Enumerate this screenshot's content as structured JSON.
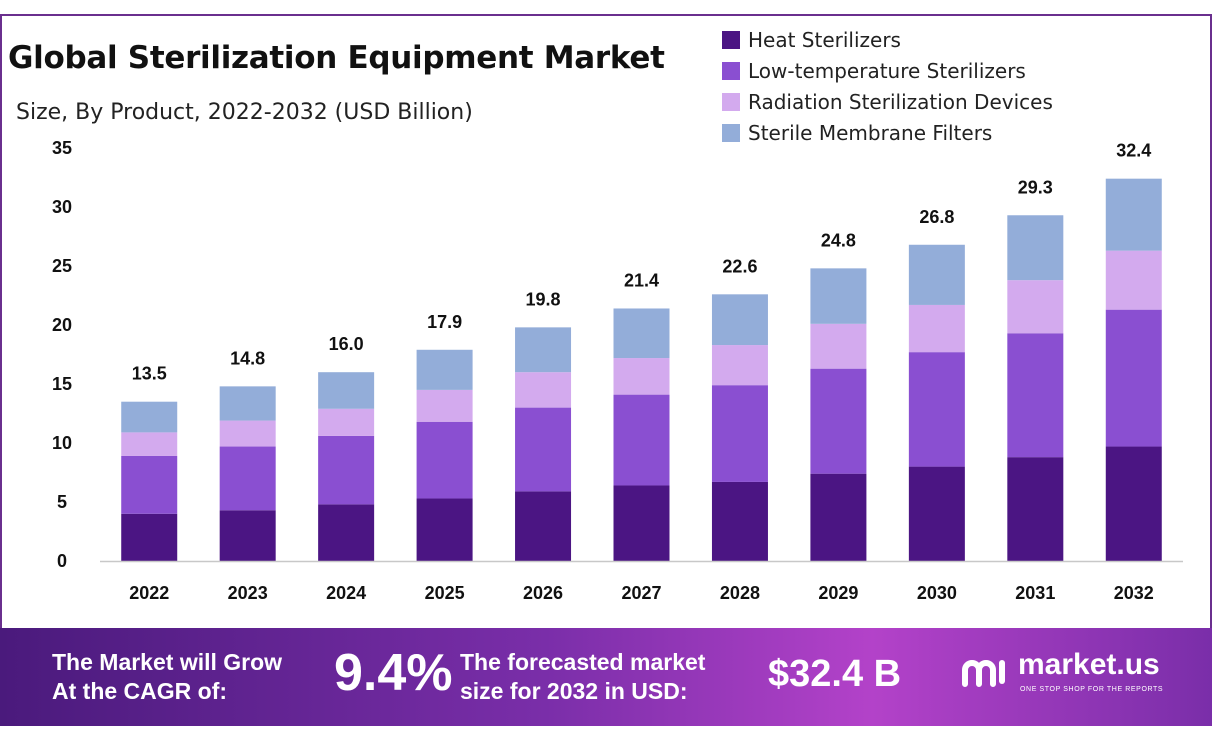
{
  "header": {
    "title": "Global Sterilization Equipment Market",
    "subtitle": "Size, By Product, 2022-2032 (USD Billion)"
  },
  "legend": [
    {
      "label": "Heat Sterilizers",
      "color": "#4b1583"
    },
    {
      "label": "Low-temperature Sterilizers",
      "color": "#8a4fd1"
    },
    {
      "label": "Radiation Sterilization Devices",
      "color": "#d3aaee"
    },
    {
      "label": "Sterile Membrane Filters",
      "color": "#93add9"
    }
  ],
  "banner": {
    "grow_line1": "The Market will Grow",
    "grow_line2": "At the CAGR of:",
    "cagr": "9.4%",
    "forecast_line1": "The forecasted market",
    "forecast_line2": "size for 2032 in USD:",
    "size": "$32.4 B",
    "logo_name": "market.us",
    "logo_tagline": "ONE STOP SHOP FOR THE REPORTS"
  },
  "chart_data": {
    "type": "bar",
    "stacked": true,
    "title": "Global Sterilization Equipment Market",
    "subtitle": "Size, By Product, 2022-2032 (USD Billion)",
    "categories": [
      "2022",
      "2023",
      "2024",
      "2025",
      "2026",
      "2027",
      "2028",
      "2029",
      "2030",
      "2031",
      "2032"
    ],
    "series": [
      {
        "name": "Heat Sterilizers",
        "color": "#4b1583",
        "values": [
          4.0,
          4.3,
          4.8,
          5.3,
          5.9,
          6.4,
          6.7,
          7.4,
          8.0,
          8.8,
          9.7
        ]
      },
      {
        "name": "Low-temperature Sterilizers",
        "color": "#8a4fd1",
        "values": [
          4.9,
          5.4,
          5.8,
          6.5,
          7.1,
          7.7,
          8.2,
          8.9,
          9.7,
          10.5,
          11.6
        ]
      },
      {
        "name": "Radiation Sterilization Devices",
        "color": "#d3aaee",
        "values": [
          2.0,
          2.2,
          2.3,
          2.7,
          3.0,
          3.1,
          3.4,
          3.8,
          4.0,
          4.5,
          5.0
        ]
      },
      {
        "name": "Sterile Membrane Filters",
        "color": "#93add9",
        "values": [
          2.6,
          2.9,
          3.1,
          3.4,
          3.8,
          4.2,
          4.3,
          4.7,
          5.1,
          5.5,
          6.1
        ]
      }
    ],
    "totals": [
      "13.5",
      "14.8",
      "16.0",
      "17.9",
      "19.8",
      "21.4",
      "22.6",
      "24.8",
      "26.8",
      "29.3",
      "32.4"
    ],
    "yticks": [
      "0",
      "5",
      "10",
      "15",
      "20",
      "25",
      "30",
      "35"
    ],
    "ylim": [
      0,
      35
    ],
    "grid": false,
    "legend_position": "top-right"
  }
}
